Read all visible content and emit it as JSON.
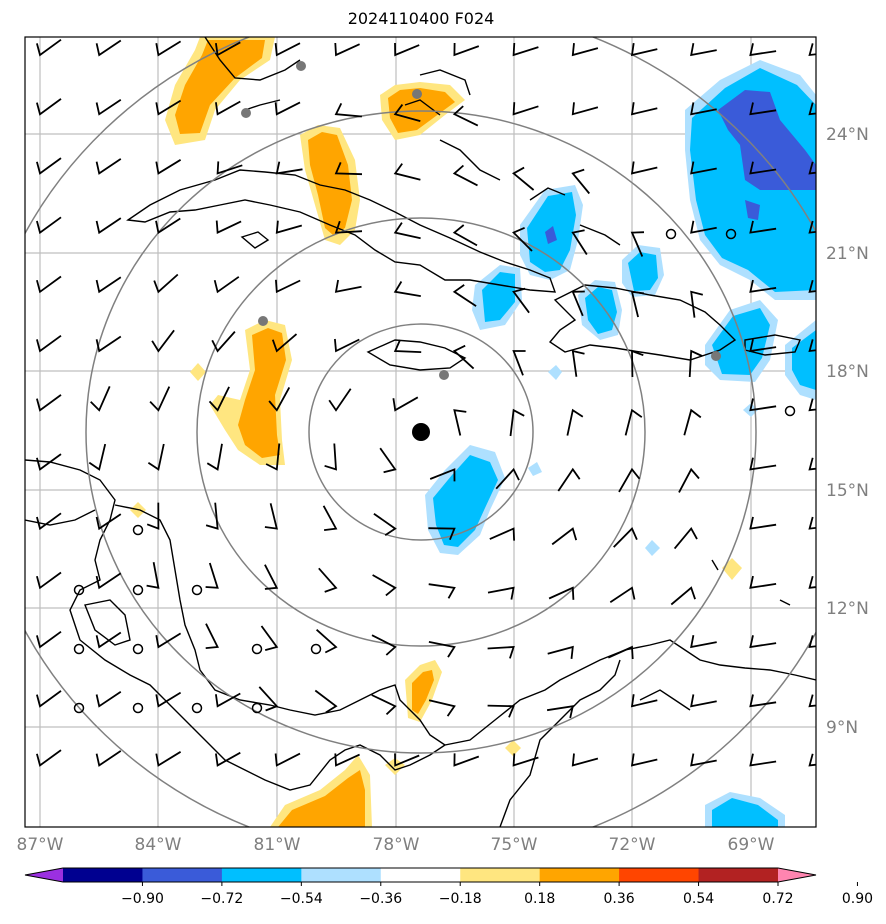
{
  "title": "2024110400 F024",
  "lat_labels": [
    "24°N",
    "21°N",
    "18°N",
    "15°N",
    "12°N",
    "9°N"
  ],
  "lon_labels": [
    "87°W",
    "84°W",
    "81°W",
    "78°W",
    "75°W",
    "72°W",
    "69°W"
  ],
  "colorbar": {
    "ticks": [
      "−0.90",
      "−0.72",
      "−0.54",
      "−0.36",
      "−0.18",
      "0.18",
      "0.36",
      "0.54",
      "0.72",
      "0.90"
    ],
    "colors": [
      "#9b30e0",
      "#000090",
      "#3a5bd9",
      "#00bfff",
      "#aee0ff",
      "#ffffff",
      "#ffe680",
      "#ffa500",
      "#ff4500",
      "#b22222",
      "#ff85b0"
    ]
  },
  "colors": {
    "neg_light": "#aee0ff",
    "neg_mid": "#00bfff",
    "neg_dark": "#3a5bd9",
    "pos_light": "#ffe680",
    "pos_mid": "#ffa500",
    "grid": "#bfbfbf",
    "rings": "#808080",
    "coast": "#000000"
  }
}
